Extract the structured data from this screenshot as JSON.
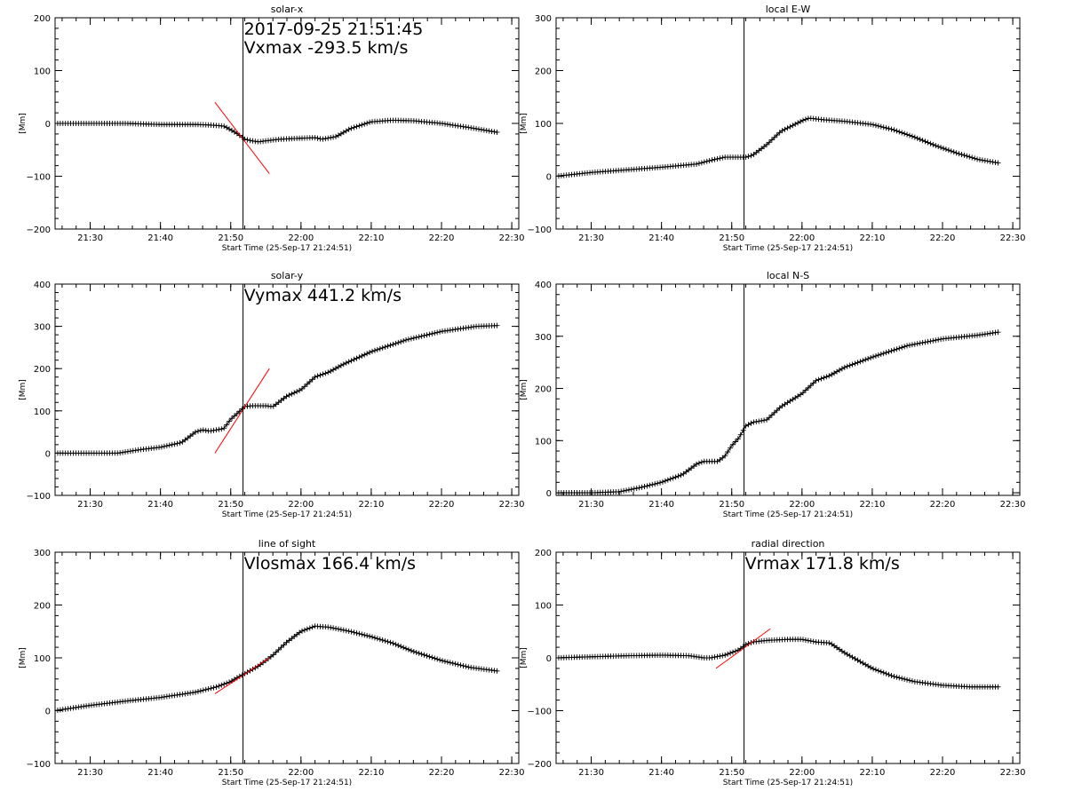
{
  "figure": {
    "xlabel": "Start Time (25-Sep-17 21:24:51)",
    "ylabel": "[Mm]",
    "x_range": [
      "21:25",
      "22:31"
    ],
    "x_ticks": [
      "21:30",
      "21:40",
      "21:50",
      "22:00",
      "22:10",
      "22:20",
      "22:30"
    ],
    "marker_time": "21:51:45",
    "background": "#ffffff",
    "line_color": "#000000",
    "fit_color": "#ff0000"
  },
  "chart_data": [
    {
      "type": "line",
      "title": "solar-x",
      "annotations": [
        "2017-09-25 21:51:45",
        "Vxmax -293.5 km/s"
      ],
      "ylim": [
        -200,
        200
      ],
      "y_ticks": [
        "200",
        "100",
        "0",
        "−100",
        "−200"
      ],
      "series": [
        {
          "x": [
            "21:25",
            "21:30",
            "21:35",
            "21:40",
            "21:45",
            "21:47",
            "21:49",
            "21:50",
            "21:51",
            "21:52",
            "21:53",
            "21:54",
            "21:55",
            "21:57",
            "22:00",
            "22:02",
            "22:03",
            "22:05",
            "22:07",
            "22:10",
            "22:13",
            "22:16",
            "22:20",
            "22:24",
            "22:28"
          ],
          "values": [
            0,
            0,
            0,
            -2,
            -2,
            -3,
            -5,
            -12,
            -20,
            -30,
            -33,
            -35,
            -33,
            -30,
            -28,
            -27,
            -30,
            -25,
            -10,
            3,
            6,
            5,
            0,
            -8,
            -17
          ]
        }
      ],
      "fit_line": {
        "x": [
          "21:47:45",
          "21:55:30"
        ],
        "values": [
          40,
          -95
        ]
      }
    },
    {
      "type": "line",
      "title": "local E-W",
      "annotations": [],
      "ylim": [
        -100,
        300
      ],
      "y_ticks": [
        "300",
        "200",
        "100",
        "0",
        "−100"
      ],
      "series": [
        {
          "x": [
            "21:25",
            "21:30",
            "21:35",
            "21:40",
            "21:45",
            "21:47",
            "21:49",
            "21:51",
            "21:52",
            "21:53",
            "21:55",
            "21:57",
            "22:00",
            "22:01",
            "22:03",
            "22:06",
            "22:10",
            "22:13",
            "22:16",
            "22:19",
            "22:22",
            "22:25",
            "22:28"
          ],
          "values": [
            0,
            7,
            12,
            17,
            23,
            30,
            36,
            36,
            36,
            40,
            60,
            85,
            105,
            110,
            107,
            104,
            98,
            88,
            74,
            58,
            44,
            32,
            25
          ]
        }
      ]
    },
    {
      "type": "line",
      "title": "solar-y",
      "annotations": [
        "Vymax 441.2 km/s"
      ],
      "ylim": [
        -100,
        400
      ],
      "y_ticks": [
        "400",
        "300",
        "200",
        "100",
        "0",
        "−100"
      ],
      "series": [
        {
          "x": [
            "21:25",
            "21:30",
            "21:34",
            "21:37",
            "21:40",
            "21:43",
            "21:45",
            "21:46",
            "21:47",
            "21:49",
            "21:50",
            "21:51",
            "21:52",
            "21:53",
            "21:55",
            "21:56",
            "21:58",
            "22:00",
            "22:02",
            "22:04",
            "22:06",
            "22:10",
            "22:15",
            "22:20",
            "22:25",
            "22:28"
          ],
          "values": [
            0,
            0,
            0,
            8,
            14,
            25,
            50,
            55,
            52,
            58,
            80,
            95,
            110,
            112,
            112,
            110,
            135,
            150,
            180,
            192,
            210,
            240,
            268,
            288,
            300,
            302
          ]
        }
      ],
      "fit_line": {
        "x": [
          "21:47:45",
          "21:55:30"
        ],
        "values": [
          0,
          200
        ]
      }
    },
    {
      "type": "line",
      "title": "local N-S",
      "annotations": [],
      "ylim": [
        -5,
        400
      ],
      "y_ticks": [
        "400",
        "300",
        "200",
        "100",
        "0"
      ],
      "series": [
        {
          "x": [
            "21:25",
            "21:30",
            "21:34",
            "21:37",
            "21:40",
            "21:43",
            "21:45",
            "21:46",
            "21:48",
            "21:49",
            "21:50",
            "21:51",
            "21:52",
            "21:53",
            "21:55",
            "21:57",
            "22:00",
            "22:02",
            "22:04",
            "22:06",
            "22:10",
            "22:15",
            "22:20",
            "22:25",
            "22:28"
          ],
          "values": [
            0,
            0,
            2,
            10,
            20,
            35,
            55,
            60,
            60,
            70,
            90,
            105,
            128,
            135,
            140,
            165,
            190,
            215,
            225,
            240,
            260,
            282,
            295,
            302,
            308
          ]
        }
      ]
    },
    {
      "type": "line",
      "title": "line of sight",
      "annotations": [
        "Vlosmax 166.4 km/s"
      ],
      "ylim": [
        -100,
        300
      ],
      "y_ticks": [
        "300",
        "200",
        "100",
        "0",
        "−100"
      ],
      "series": [
        {
          "x": [
            "21:25",
            "21:30",
            "21:35",
            "21:40",
            "21:45",
            "21:48",
            "21:50",
            "21:51",
            "21:52",
            "21:54",
            "21:56",
            "21:58",
            "22:00",
            "22:02",
            "22:04",
            "22:07",
            "22:10",
            "22:13",
            "22:16",
            "22:20",
            "22:24",
            "22:28"
          ],
          "values": [
            0,
            10,
            18,
            25,
            35,
            45,
            55,
            63,
            70,
            85,
            105,
            130,
            150,
            160,
            158,
            150,
            140,
            128,
            112,
            95,
            82,
            75
          ]
        }
      ],
      "fit_line": {
        "x": [
          "21:47:45",
          "21:55:30"
        ],
        "values": [
          32,
          100
        ]
      }
    },
    {
      "type": "line",
      "title": "radial direction",
      "annotations": [
        "Vrmax 171.8 km/s"
      ],
      "ylim": [
        -200,
        200
      ],
      "y_ticks": [
        "200",
        "100",
        "0",
        "−100",
        "−200"
      ],
      "series": [
        {
          "x": [
            "21:25",
            "21:30",
            "21:35",
            "21:40",
            "21:44",
            "21:46",
            "21:47",
            "21:49",
            "21:51",
            "21:52",
            "21:53",
            "21:55",
            "21:58",
            "22:00",
            "22:02",
            "22:04",
            "22:06",
            "22:08",
            "22:10",
            "22:13",
            "22:16",
            "22:20",
            "22:24",
            "22:28"
          ],
          "values": [
            0,
            2,
            4,
            5,
            4,
            0,
            0,
            5,
            15,
            25,
            30,
            33,
            35,
            35,
            30,
            28,
            10,
            -5,
            -20,
            -35,
            -45,
            -52,
            -55,
            -55
          ]
        }
      ],
      "fit_line": {
        "x": [
          "21:47:45",
          "21:55:30"
        ],
        "values": [
          -20,
          55
        ]
      }
    }
  ]
}
